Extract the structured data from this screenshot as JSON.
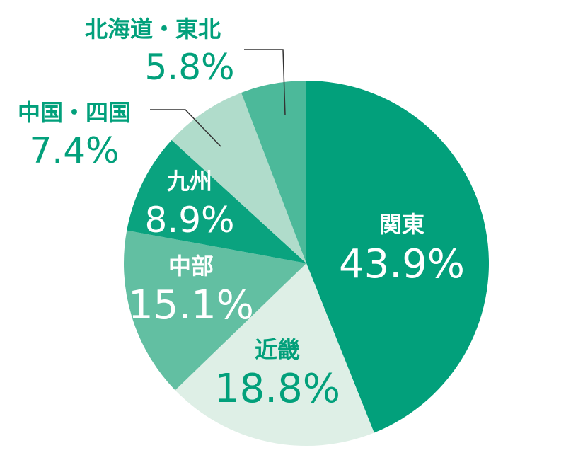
{
  "chart_data": {
    "type": "pie",
    "start": "top",
    "direction": "clockwise",
    "slices": [
      {
        "label": "関東",
        "value": 43.9,
        "value_text": "43.9%",
        "color": "#02a07b",
        "label_color": "#ffffff",
        "value_color": "#ffffff"
      },
      {
        "label": "近畿",
        "value": 18.8,
        "value_text": "18.8%",
        "color": "#deefe6",
        "label_color": "#02a07b",
        "value_color": "#02a07b"
      },
      {
        "label": "中部",
        "value": 15.1,
        "value_text": "15.1%",
        "color": "#62bfa2",
        "label_color": "#ffffff",
        "value_color": "#ffffff"
      },
      {
        "label": "九州",
        "value": 8.9,
        "value_text": "8.9%",
        "color": "#0aa37f",
        "label_color": "#ffffff",
        "value_color": "#ffffff"
      },
      {
        "label": "中国・四国",
        "value": 7.4,
        "value_text": "7.4%",
        "color": "#b0dccb",
        "label_color": "#02a07b",
        "value_color": "#02a07b"
      },
      {
        "label": "北海道・東北",
        "value": 5.8,
        "value_text": "5.8%",
        "color": "#4cb99a",
        "label_color": "#02a07b",
        "value_color": "#02a07b"
      }
    ]
  }
}
